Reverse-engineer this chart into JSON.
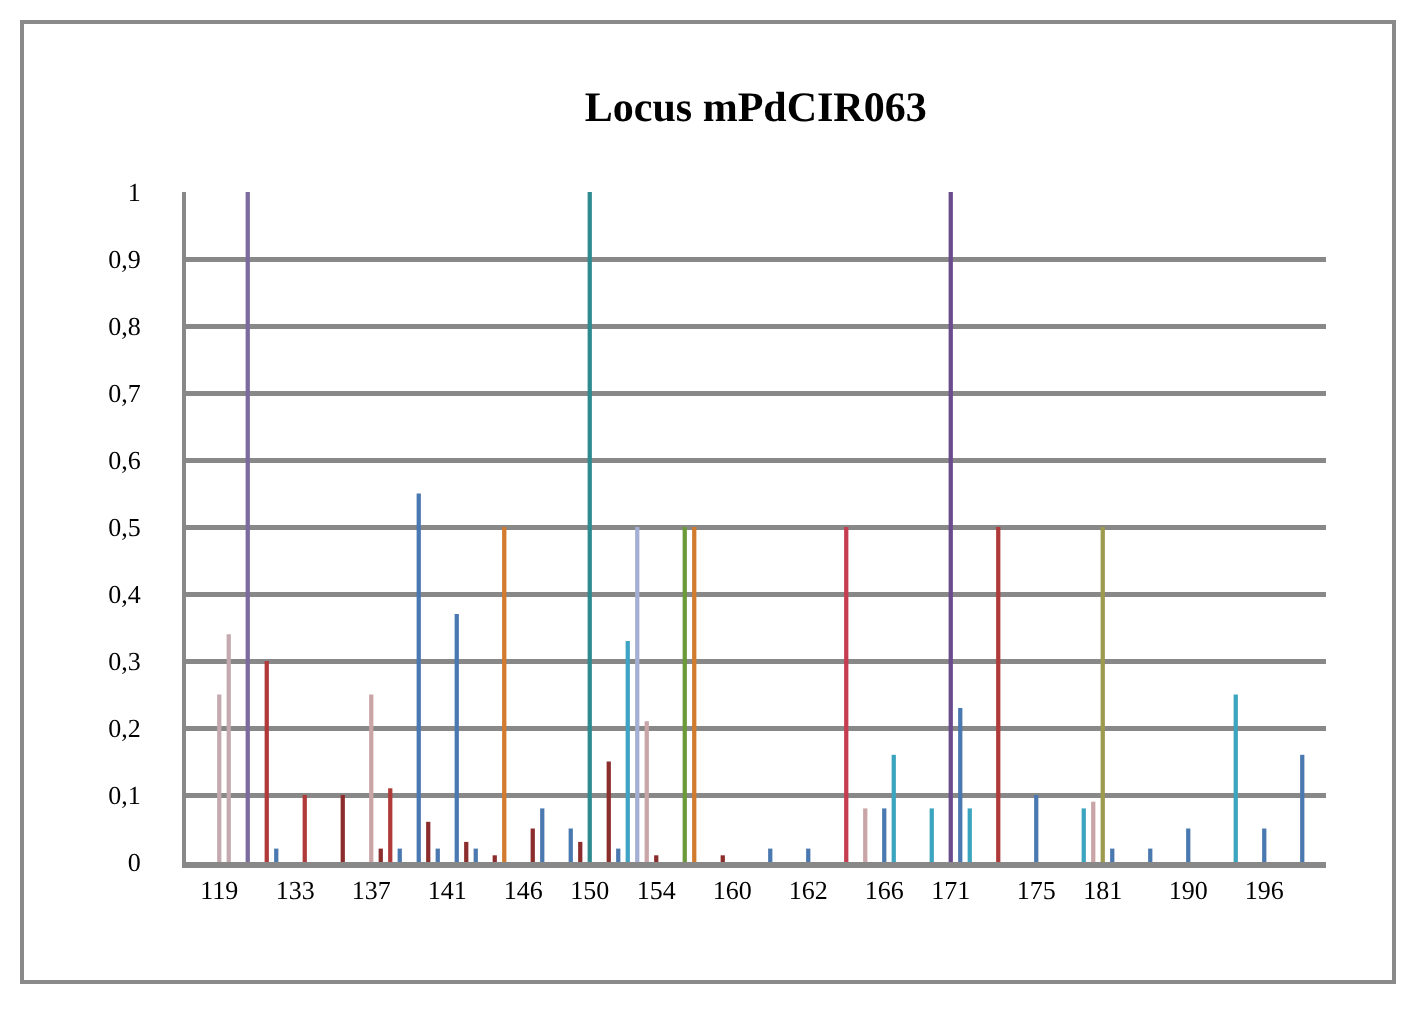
{
  "chart_data": {
    "type": "bar",
    "title": "Locus mPdCIR063",
    "categories": [
      null,
      null,
      null,
      "119",
      null,
      null,
      null,
      null,
      null,
      null,
      null,
      "133",
      null,
      null,
      null,
      null,
      null,
      null,
      null,
      "137",
      null,
      null,
      null,
      null,
      null,
      null,
      null,
      "141",
      null,
      null,
      null,
      null,
      null,
      null,
      null,
      "146",
      null,
      null,
      null,
      null,
      null,
      null,
      "150",
      null,
      null,
      null,
      null,
      null,
      null,
      "154",
      null,
      null,
      null,
      null,
      null,
      null,
      null,
      "160",
      null,
      null,
      null,
      null,
      null,
      null,
      null,
      "162",
      null,
      null,
      null,
      null,
      null,
      null,
      null,
      "166",
      null,
      null,
      null,
      null,
      null,
      null,
      "171",
      null,
      null,
      null,
      null,
      null,
      null,
      null,
      null,
      "175",
      null,
      null,
      null,
      null,
      null,
      null,
      "181",
      null,
      null,
      null,
      null,
      null,
      null,
      null,
      null,
      "190",
      null,
      null,
      null,
      null,
      null,
      null,
      null,
      "196",
      null,
      null,
      null,
      null,
      null,
      null
    ],
    "values": [
      null,
      null,
      null,
      0.25,
      0.34,
      null,
      1,
      null,
      0.3,
      0.02,
      null,
      null,
      0.1,
      null,
      null,
      null,
      0.1,
      null,
      null,
      0.25,
      0.02,
      0.11,
      0.02,
      null,
      0.55,
      0.06,
      0.02,
      null,
      0.37,
      0.03,
      0.02,
      null,
      0.01,
      0.5,
      null,
      null,
      0.05,
      0.08,
      null,
      null,
      0.05,
      0.03,
      1,
      null,
      0.15,
      0.02,
      0.33,
      0.5,
      0.21,
      0.01,
      null,
      null,
      0.5,
      0.5,
      null,
      null,
      0.01,
      null,
      null,
      null,
      null,
      0.02,
      null,
      null,
      null,
      0.02,
      null,
      null,
      null,
      0.5,
      null,
      0.08,
      null,
      0.08,
      0.16,
      null,
      null,
      null,
      0.08,
      null,
      1,
      0.23,
      0.08,
      null,
      null,
      0.5,
      null,
      null,
      null,
      0.1,
      null,
      null,
      null,
      null,
      0.08,
      0.09,
      0.5,
      0.02,
      null,
      null,
      null,
      0.02,
      null,
      null,
      null,
      0.05,
      null,
      null,
      null,
      null,
      0.25,
      null,
      null,
      0.05,
      null,
      null,
      null,
      0.16,
      null,
      null
    ],
    "colors": [
      null,
      null,
      null,
      "#c4a9b1",
      "#c4a9b1",
      null,
      "#7b6b9e",
      null,
      "#b03a3a",
      "#4a78b0",
      null,
      null,
      "#b03a3a",
      null,
      null,
      null,
      "#8c2d2d",
      null,
      null,
      "#c9a5a8",
      "#8c2d2d",
      "#b03a3a",
      "#4a78b0",
      null,
      "#4a78b0",
      "#8c2d2d",
      "#4a78b0",
      null,
      "#4a78b0",
      "#8c2d2d",
      "#4a78b0",
      null,
      "#8c2d2d",
      "#d27b2e",
      null,
      null,
      "#8c2d2d",
      "#4a78b0",
      null,
      null,
      "#4a78b0",
      "#8c2d2d",
      "#2e8b8f",
      null,
      "#8c2d2d",
      "#4a78b0",
      "#3fa3c4",
      "#a5aed3",
      "#c9a5a8",
      "#8c2d2d",
      null,
      null,
      "#6c9a3a",
      "#d27b2e",
      null,
      null,
      "#8c2d2d",
      null,
      null,
      null,
      null,
      "#4a78b0",
      null,
      null,
      null,
      "#4a78b0",
      null,
      null,
      null,
      "#c43e50",
      null,
      "#c9a5a8",
      null,
      "#4a78b0",
      "#3ba5bf",
      null,
      null,
      null,
      "#3ba5bf",
      null,
      "#6a4b8c",
      "#4a78b0",
      "#3ba5bf",
      null,
      null,
      "#b03a3a",
      null,
      null,
      null,
      "#4a78b0",
      null,
      null,
      null,
      null,
      "#3ba5bf",
      "#c9a5a8",
      "#9c9a4c",
      "#4a78b0",
      null,
      null,
      null,
      "#4a78b0",
      null,
      null,
      null,
      "#4a78b0",
      null,
      null,
      null,
      null,
      "#3ba5bf",
      null,
      null,
      "#4a78b0",
      null,
      null,
      null,
      "#4a78b0",
      null,
      null
    ],
    "ylim": [
      0,
      1
    ],
    "yticks": [
      0,
      {
        "value": 0.1,
        "label": "0,1"
      },
      {
        "value": 0.2,
        "label": "0,2"
      },
      {
        "value": 0.3,
        "label": "0,3"
      },
      {
        "value": 0.4,
        "label": "0,4"
      },
      {
        "value": 0.5,
        "label": "0,5"
      },
      {
        "value": 0.6,
        "label": "0,6"
      },
      {
        "value": 0.7,
        "label": "0,7"
      },
      {
        "value": 0.8,
        "label": "0,8"
      },
      {
        "value": 0.9,
        "label": "0,9"
      },
      1
    ],
    "grid": "y"
  }
}
